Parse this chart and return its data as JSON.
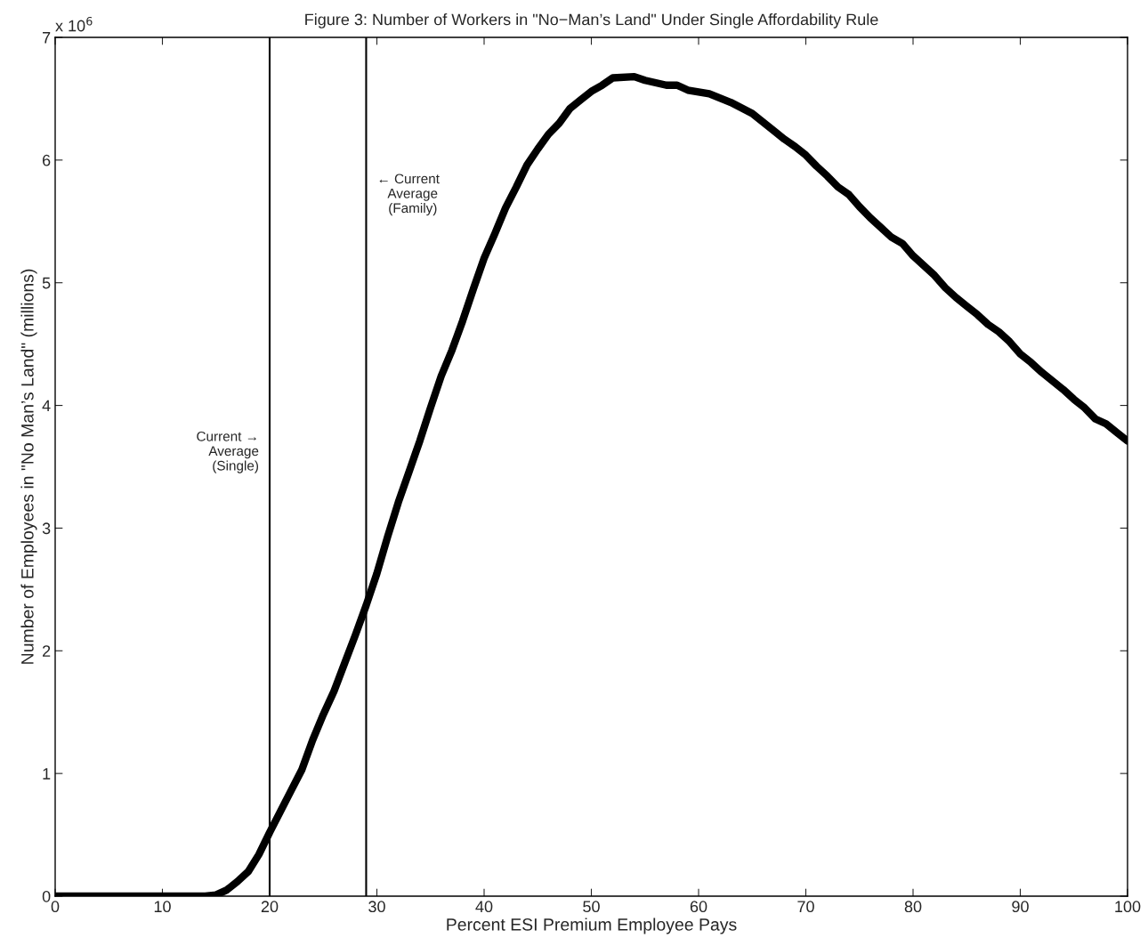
{
  "chart_data": {
    "type": "line",
    "title": "Figure 3: Number of Workers in \"No−Man’s Land\" Under Single Affordability Rule",
    "xlabel": "Percent ESI Premium Employee Pays",
    "ylabel": "Number of Employees in \"No Man’s Land\" (millions)",
    "annotations": [
      "x 10$^{6}$"
    ],
    "x": [
      0,
      2,
      4,
      6,
      8,
      10,
      12,
      14,
      15,
      16,
      17,
      18,
      19,
      20,
      21,
      22,
      23,
      24,
      25,
      26,
      27,
      28,
      29,
      30,
      31,
      32,
      33,
      34,
      35,
      36,
      37,
      38,
      39,
      40,
      41,
      42,
      43,
      44,
      45,
      46,
      47,
      48,
      49,
      50,
      51,
      52,
      54,
      55,
      56,
      57,
      58,
      59,
      61,
      63,
      65,
      67,
      68,
      69,
      70,
      71,
      72,
      73,
      74,
      75,
      76,
      77,
      78,
      79,
      80,
      81,
      82,
      83,
      84,
      85,
      86,
      87,
      88,
      89,
      90,
      91,
      92,
      93,
      94,
      95,
      96,
      97,
      98,
      99,
      100
    ],
    "series": [
      {
        "color": "#000000",
        "values": [
          0,
          0,
          0,
          0,
          0,
          0,
          0,
          0,
          0.01,
          0.05,
          0.12,
          0.2,
          0.34,
          0.52,
          0.69,
          0.86,
          1.03,
          1.27,
          1.48,
          1.67,
          1.9,
          2.13,
          2.37,
          2.63,
          2.93,
          3.21,
          3.46,
          3.71,
          3.98,
          4.24,
          4.45,
          4.69,
          4.95,
          5.2,
          5.4,
          5.61,
          5.78,
          5.96,
          6.09,
          6.21,
          6.3,
          6.42,
          6.49,
          6.56,
          6.61,
          6.67,
          6.68,
          6.65,
          6.63,
          6.61,
          6.61,
          6.57,
          6.54,
          6.47,
          6.38,
          6.24,
          6.17,
          6.11,
          6.04,
          5.95,
          5.87,
          5.78,
          5.72,
          5.62,
          5.53,
          5.45,
          5.37,
          5.32,
          5.22,
          5.14,
          5.06,
          4.96,
          4.88,
          4.81,
          4.74,
          4.66,
          4.6,
          4.52,
          4.42,
          4.35,
          4.27,
          4.2,
          4.13,
          4.05,
          3.98,
          3.89,
          3.85,
          3.78,
          3.71
        ]
      }
    ],
    "xlim": [
      0,
      100
    ],
    "xticks": [
      0,
      10,
      20,
      30,
      40,
      50,
      60,
      70,
      80,
      90,
      100
    ],
    "ylim": [
      0,
      7
    ],
    "yticks": [
      0,
      1,
      2,
      3,
      4,
      5,
      6,
      7
    ],
    "ref_lines": [
      {
        "axis": "x",
        "value": 20,
        "label": "Current →\nAverage\n(Single)",
        "color": "#000000"
      },
      {
        "axis": "x",
        "value": 29,
        "label": "← Current\n   Average\n   (Family)",
        "color": "#000000"
      }
    ],
    "grid": false,
    "legend": false,
    "marker": "none",
    "line_style": "solid"
  }
}
